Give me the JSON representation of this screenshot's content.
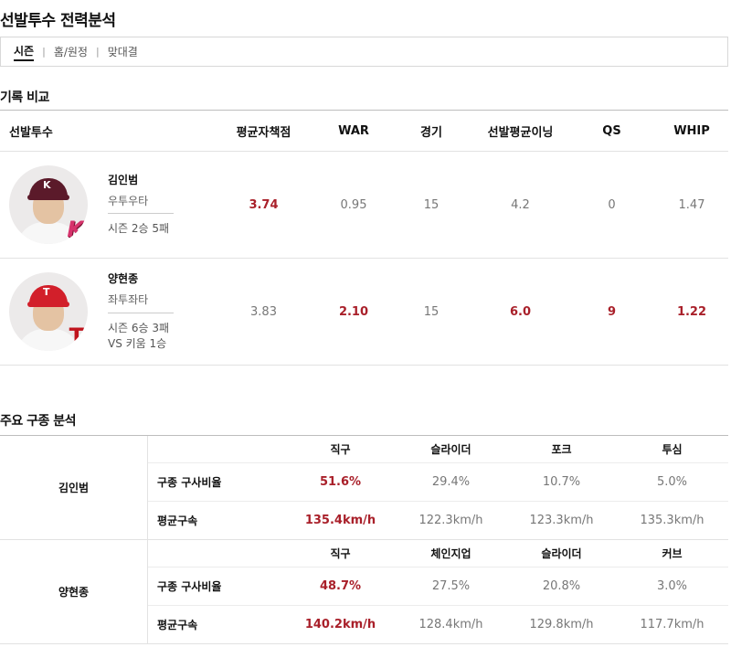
{
  "title": "선발투수 전력분석",
  "tabs": [
    {
      "label": "시즌",
      "active": true
    },
    {
      "label": "홈/원정",
      "active": false
    },
    {
      "label": "맞대결",
      "active": false
    }
  ],
  "record": {
    "section_title": "기록 비교",
    "headers": [
      "선발투수",
      "평균자책점",
      "WAR",
      "경기",
      "선발평균이닝",
      "QS",
      "WHIP"
    ],
    "rows": [
      {
        "name": "김인범",
        "hand": "우투우타",
        "record_lines": [
          "시즌 2승 5패",
          ""
        ],
        "team_logo": "K",
        "cap_letter": "K",
        "team_icon": "kiwoom-heroes-logo-icon",
        "values": [
          "3.74",
          "0.95",
          "15",
          "4.2",
          "0",
          "1.47"
        ],
        "highlight": [
          true,
          false,
          false,
          false,
          false,
          false
        ]
      },
      {
        "name": "양현종",
        "hand": "좌투좌타",
        "record_lines": [
          "시즌 6승 3패",
          "VS 키움 1승"
        ],
        "team_logo": "T",
        "cap_letter": "T",
        "team_icon": "kia-tigers-logo-icon",
        "values": [
          "3.83",
          "2.10",
          "15",
          "6.0",
          "9",
          "1.22"
        ],
        "highlight": [
          false,
          true,
          false,
          true,
          true,
          true
        ]
      }
    ]
  },
  "pitch": {
    "section_title": "주요 구종 분석",
    "groups": [
      {
        "name": "김인범",
        "pitch_types": [
          "직구",
          "슬라이더",
          "포크",
          "투심"
        ],
        "ratio_label": "구종 구사비율",
        "ratios": [
          "51.6%",
          "29.4%",
          "10.7%",
          "5.0%"
        ],
        "speed_label": "평균구속",
        "speeds": [
          "135.4km/h",
          "122.3km/h",
          "123.3km/h",
          "135.3km/h"
        ]
      },
      {
        "name": "양현종",
        "pitch_types": [
          "직구",
          "체인지업",
          "슬라이더",
          "커브"
        ],
        "ratio_label": "구종 구사비율",
        "ratios": [
          "48.7%",
          "27.5%",
          "20.8%",
          "3.0%"
        ],
        "speed_label": "평균구속",
        "speeds": [
          "140.2km/h",
          "128.4km/h",
          "129.8km/h",
          "117.7km/h"
        ]
      }
    ]
  },
  "colors": {
    "highlight": "#a9202a",
    "muted": "#777777",
    "border": "#e2e2e2"
  }
}
